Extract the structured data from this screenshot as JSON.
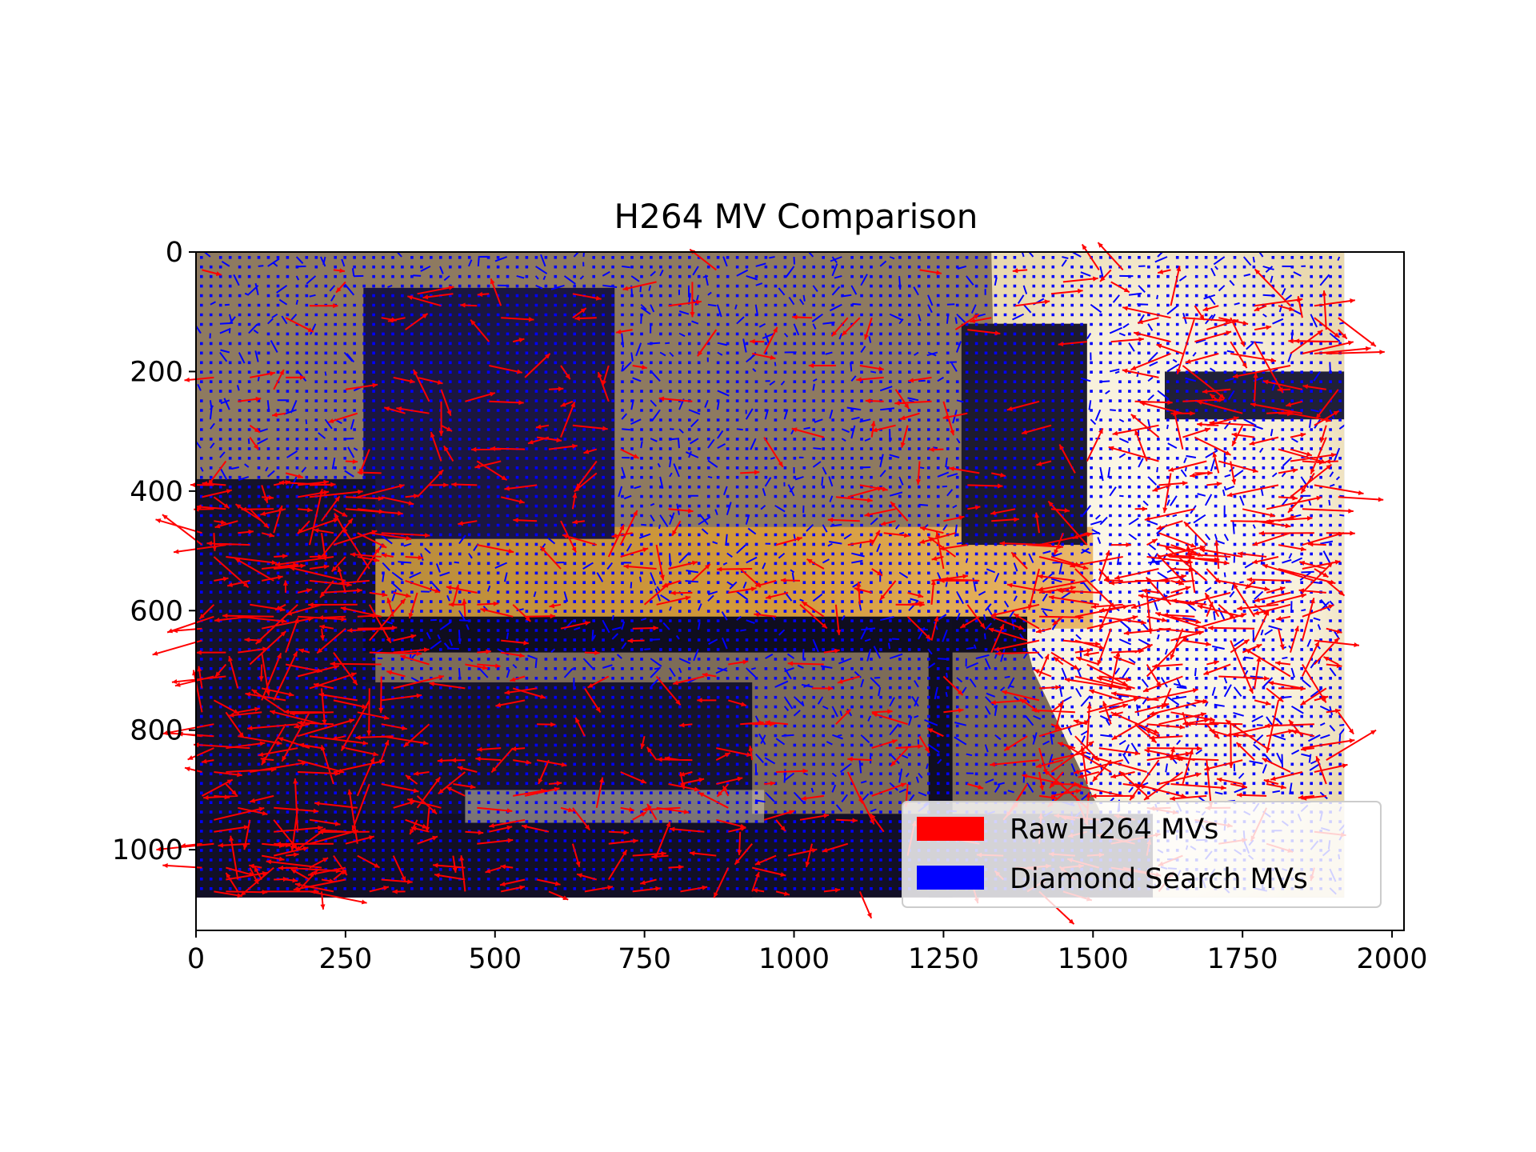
{
  "chart_data": {
    "type": "quiver",
    "title": "H264 MV Comparison",
    "xlabel": "",
    "ylabel": "",
    "xlim": [
      0,
      2020
    ],
    "ylim": [
      1135,
      0
    ],
    "y_axis_inverted": true,
    "frame": {
      "width": 1920,
      "height": 1080
    },
    "grid": false,
    "legend_position": "lower-right",
    "x_ticks": [
      0,
      250,
      500,
      750,
      1000,
      1250,
      1500,
      1750,
      2000
    ],
    "x_tick_labels": [
      "0",
      "250",
      "500",
      "750",
      "1000",
      "1250",
      "1500",
      "1750",
      "2000"
    ],
    "y_ticks": [
      0,
      200,
      400,
      600,
      800,
      1000
    ],
    "y_tick_labels": [
      "0",
      "200",
      "400",
      "600",
      "800",
      "1000"
    ],
    "background": "video frame of an indoor room (monitor, desk, chair, bright window)",
    "series": [
      {
        "name": "Raw H264 MVs",
        "color": "#ff0000"
      },
      {
        "name": "Diamond Search MVs",
        "color": "#0000ff"
      }
    ]
  }
}
